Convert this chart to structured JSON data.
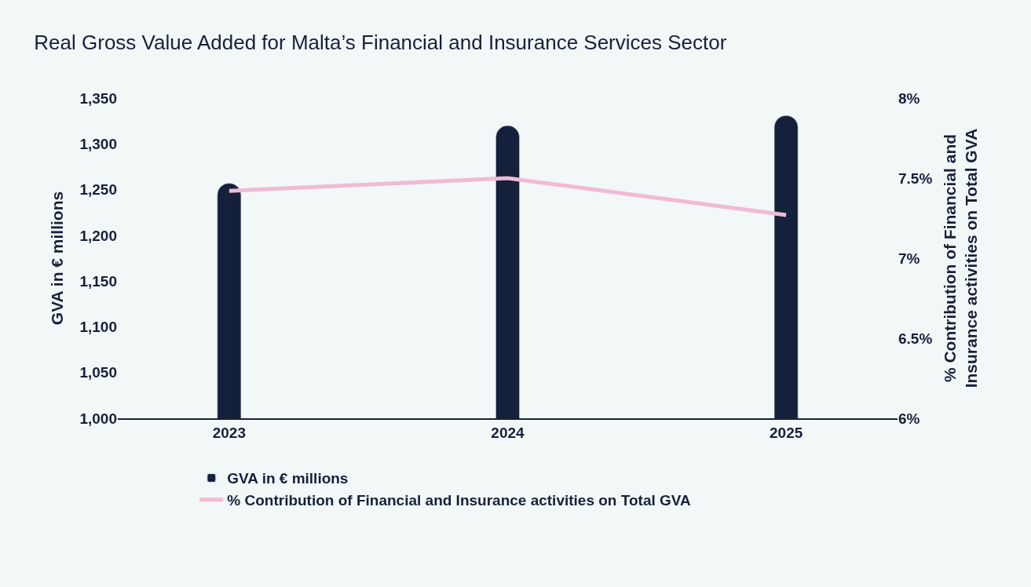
{
  "chart_data": {
    "type": "bar",
    "title": "Real Gross Value Added for Malta’s Financial and Insurance Services Sector",
    "ylabel": "GVA in € millions",
    "y2label": "% Contribution of Financial and Insurance activities on Total GVA",
    "categories": [
      "2023",
      "2024",
      "2025"
    ],
    "series": [
      {
        "name": "GVA in € millions",
        "color": "#15213a",
        "values": [
          1257,
          1320,
          1331
        ]
      },
      {
        "name": "% Contribution of Financial and Insurance activities on Total GVA",
        "type": "line",
        "axis": "y2",
        "color": "#f0bad5",
        "values": [
          7.42,
          7.5,
          7.27
        ]
      }
    ],
    "ylim": [
      1000,
      1350
    ],
    "yticks": [
      {
        "value": 1000,
        "label": "1,000"
      },
      {
        "value": 1050,
        "label": "1,050"
      },
      {
        "value": 1100,
        "label": "1,100"
      },
      {
        "value": 1150,
        "label": "1,150"
      },
      {
        "value": 1200,
        "label": "1,200"
      },
      {
        "value": 1250,
        "label": "1,250"
      },
      {
        "value": 1300,
        "label": "1,300"
      },
      {
        "value": 1350,
        "label": "1,350"
      }
    ],
    "y2lim": [
      6,
      8
    ],
    "y2ticks": [
      {
        "value": 6,
        "label": "6%"
      },
      {
        "value": 6.5,
        "label": "6.5%"
      },
      {
        "value": 7,
        "label": "7%"
      },
      {
        "value": 7.5,
        "label": "7.5%"
      },
      {
        "value": 8,
        "label": "8%"
      }
    ],
    "grid": false,
    "legend": "bottom left",
    "marker": "none",
    "line_style": "solid"
  }
}
